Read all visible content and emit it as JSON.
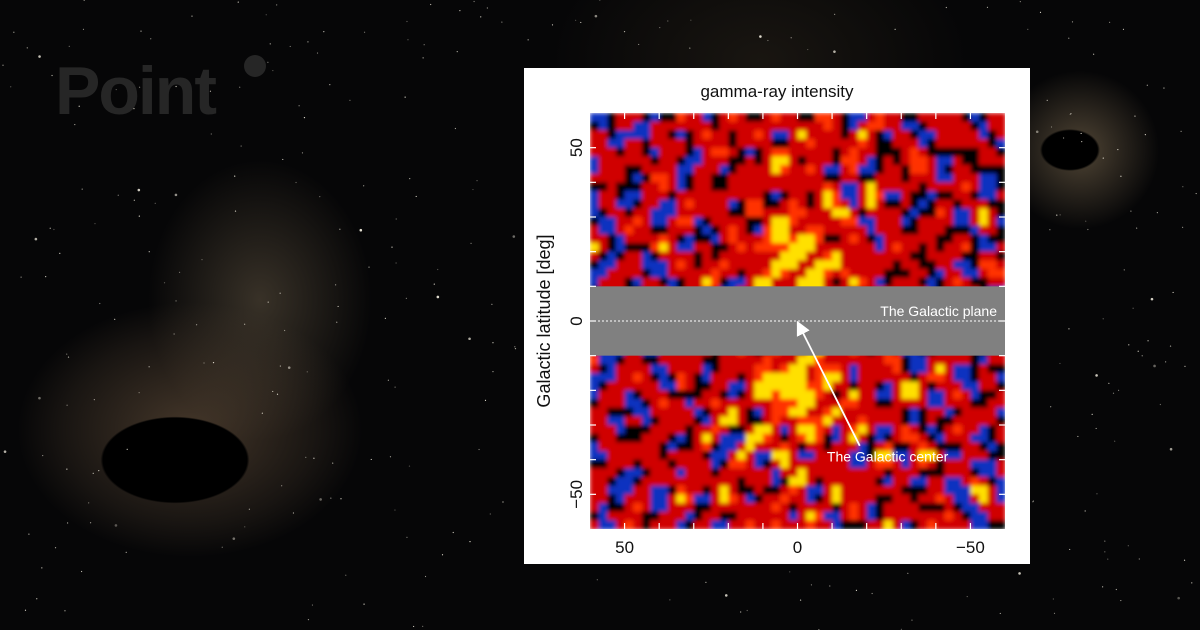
{
  "brand": {
    "logo_text": "Point"
  },
  "chart_data": {
    "type": "heatmap",
    "title": "gamma-ray intensity",
    "xlabel": "",
    "ylabel": "Galactic latitude [deg]",
    "xlim": [
      60,
      -60
    ],
    "ylim": [
      -60,
      60
    ],
    "x_ticks": [
      50,
      0,
      -50
    ],
    "x_tick_labels": [
      "50",
      "0",
      "−50"
    ],
    "y_ticks": [
      50,
      0,
      -50
    ],
    "y_tick_labels": [
      "50",
      "0",
      "−50"
    ],
    "minor_tick_step": 10,
    "grid": false,
    "colormap": [
      "#1030c0",
      "#000000",
      "#d00000",
      "#ff3000",
      "#ffe000"
    ],
    "masked_band": {
      "lat_range": [
        -10,
        10
      ],
      "color": "#808080"
    },
    "bright_regions": "yellow/orange excess near longitude 0, latitudes 10–30 and −10 to −25",
    "annotations": [
      {
        "text": "The Galactic plane",
        "type": "dashed-line",
        "lat": 0
      },
      {
        "text": "The Galactic center",
        "type": "arrow",
        "lon": 0,
        "lat": 0
      }
    ]
  }
}
